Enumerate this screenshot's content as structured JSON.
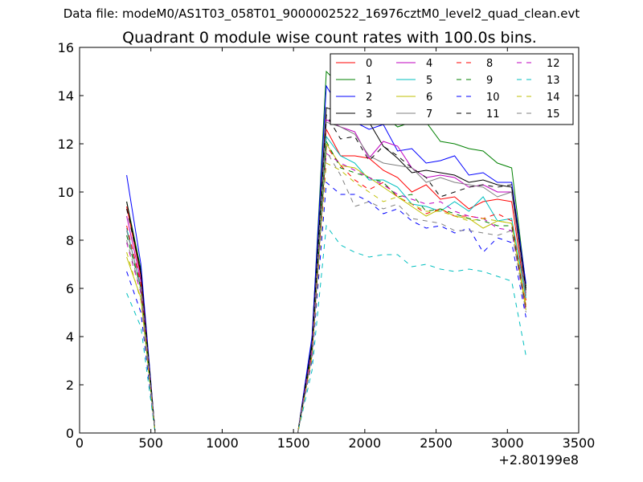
{
  "header": {
    "suptitle": "Data file: modeM0/AS1T03_058T01_9000002522_16976cztM0_level2_quad_clean.evt"
  },
  "chart_data": {
    "type": "line",
    "title": "Quadrant 0 module wise count rates with 100.0s bins.",
    "xlabel": "",
    "ylabel": "",
    "xlim": [
      0,
      3500
    ],
    "ylim": [
      0,
      16
    ],
    "x_offset_label": "+2.80199e8",
    "x_ticks": [
      0,
      500,
      1000,
      1500,
      2000,
      2500,
      3000,
      3500
    ],
    "y_ticks": [
      0,
      2,
      4,
      6,
      8,
      10,
      12,
      14,
      16
    ],
    "grid": false,
    "legend": {
      "placement": "top-right",
      "columns": 4
    },
    "x": [
      330,
      430,
      530,
      630,
      730,
      830,
      930,
      1030,
      1130,
      1230,
      1330,
      1430,
      1530,
      1630,
      1730,
      1830,
      1930,
      2030,
      2130,
      2230,
      2330,
      2430,
      2530,
      2630,
      2730,
      2830,
      2930,
      3030,
      3130
    ],
    "series": [
      {
        "name": "0",
        "color": "#ff0000",
        "dashed": false,
        "values": [
          9.4,
          6.5,
          0,
          0,
          0,
          0,
          0,
          0,
          0,
          0,
          0,
          0,
          0,
          3.6,
          12.6,
          11.5,
          11.5,
          11.4,
          10.9,
          10.6,
          10.0,
          10.3,
          9.7,
          9.8,
          9.3,
          9.6,
          9.7,
          9.6,
          5.5
        ]
      },
      {
        "name": "1",
        "color": "#008000",
        "dashed": false,
        "values": [
          9.6,
          6.8,
          0,
          0,
          0,
          0,
          0,
          0,
          0,
          0,
          0,
          0,
          0,
          3.9,
          15.0,
          14.4,
          14.0,
          13.8,
          13.2,
          12.7,
          12.9,
          12.9,
          12.1,
          12.0,
          11.8,
          11.7,
          11.2,
          11.0,
          6.1
        ]
      },
      {
        "name": "2",
        "color": "#0000ff",
        "dashed": false,
        "values": [
          10.7,
          7.0,
          0,
          0,
          0,
          0,
          0,
          0,
          0,
          0,
          0,
          0,
          0,
          4.0,
          14.4,
          13.4,
          12.9,
          12.6,
          12.8,
          11.7,
          11.8,
          11.2,
          11.3,
          11.5,
          10.7,
          10.8,
          10.4,
          10.4,
          6.2
        ]
      },
      {
        "name": "3",
        "color": "#000000",
        "dashed": false,
        "values": [
          9.6,
          6.6,
          0,
          0,
          0,
          0,
          0,
          0,
          0,
          0,
          0,
          0,
          0,
          3.7,
          13.5,
          13.3,
          13.2,
          12.9,
          11.9,
          11.4,
          10.8,
          10.9,
          10.8,
          10.7,
          10.4,
          10.5,
          10.3,
          10.2,
          6.0
        ]
      },
      {
        "name": "4",
        "color": "#bf00bf",
        "dashed": false,
        "values": [
          9.0,
          6.3,
          0,
          0,
          0,
          0,
          0,
          0,
          0,
          0,
          0,
          0,
          0,
          3.5,
          13.0,
          12.7,
          12.5,
          11.4,
          12.1,
          11.9,
          11.0,
          10.6,
          10.7,
          10.6,
          10.2,
          10.3,
          10.0,
          10.0,
          5.8
        ]
      },
      {
        "name": "5",
        "color": "#00bfbf",
        "dashed": false,
        "values": [
          8.5,
          6.0,
          0,
          0,
          0,
          0,
          0,
          0,
          0,
          0,
          0,
          0,
          0,
          3.3,
          12.3,
          11.5,
          11.2,
          10.5,
          10.5,
          10.2,
          9.5,
          9.4,
          9.2,
          9.6,
          9.2,
          9.8,
          8.8,
          8.9,
          5.6
        ]
      },
      {
        "name": "6",
        "color": "#bfbf00",
        "dashed": false,
        "values": [
          7.3,
          5.6,
          0,
          0,
          0,
          0,
          0,
          0,
          0,
          0,
          0,
          0,
          0,
          3.2,
          12.0,
          11.1,
          11.0,
          10.6,
          10.2,
          9.8,
          9.4,
          9.0,
          9.3,
          9.0,
          8.9,
          8.5,
          8.8,
          8.7,
          5.3
        ]
      },
      {
        "name": "7",
        "color": "#808080",
        "dashed": false,
        "values": [
          8.4,
          6.1,
          0,
          0,
          0,
          0,
          0,
          0,
          0,
          0,
          0,
          0,
          0,
          3.5,
          12.9,
          12.7,
          12.4,
          11.5,
          11.2,
          11.1,
          11.0,
          10.4,
          10.6,
          10.4,
          10.3,
          10.2,
          9.8,
          10.0,
          5.7
        ]
      },
      {
        "name": "8",
        "color": "#ff0000",
        "dashed": true,
        "values": [
          8.6,
          6.2,
          0,
          0,
          0,
          0,
          0,
          0,
          0,
          0,
          0,
          0,
          0,
          3.3,
          11.9,
          11.1,
          10.5,
          10.1,
          10.4,
          9.8,
          9.5,
          9.1,
          9.3,
          9.0,
          9.0,
          8.9,
          9.1,
          8.8,
          5.2
        ]
      },
      {
        "name": "9",
        "color": "#008000",
        "dashed": true,
        "values": [
          8.2,
          6.0,
          0,
          0,
          0,
          0,
          0,
          0,
          0,
          0,
          0,
          0,
          0,
          3.4,
          12.1,
          11.0,
          10.8,
          10.6,
          10.4,
          9.8,
          9.9,
          9.2,
          9.3,
          9.1,
          8.9,
          8.8,
          8.6,
          8.6,
          5.1
        ]
      },
      {
        "name": "10",
        "color": "#0000ff",
        "dashed": true,
        "values": [
          6.7,
          5.0,
          0,
          0,
          0,
          0,
          0,
          0,
          0,
          0,
          0,
          0,
          0,
          3.0,
          10.4,
          9.9,
          9.9,
          9.6,
          9.1,
          9.3,
          8.8,
          8.5,
          8.6,
          8.3,
          8.5,
          7.5,
          8.1,
          7.9,
          4.8
        ]
      },
      {
        "name": "11",
        "color": "#000000",
        "dashed": true,
        "values": [
          9.3,
          6.7,
          0,
          0,
          0,
          0,
          0,
          0,
          0,
          0,
          0,
          0,
          0,
          3.6,
          13.2,
          12.2,
          12.3,
          11.3,
          11.9,
          11.5,
          11.0,
          10.6,
          9.8,
          10.0,
          10.2,
          10.3,
          10.2,
          10.3,
          5.9
        ]
      },
      {
        "name": "12",
        "color": "#bf00bf",
        "dashed": true,
        "values": [
          7.9,
          5.8,
          0,
          0,
          0,
          0,
          0,
          0,
          0,
          0,
          0,
          0,
          0,
          3.4,
          11.6,
          11.2,
          10.9,
          10.6,
          10.3,
          9.9,
          9.7,
          9.5,
          9.6,
          9.2,
          9.0,
          8.9,
          8.5,
          8.4,
          5.0
        ]
      },
      {
        "name": "13",
        "color": "#00bfbf",
        "dashed": true,
        "values": [
          5.8,
          4.4,
          0,
          0,
          0,
          0,
          0,
          0,
          0,
          0,
          0,
          0,
          0,
          2.6,
          8.6,
          7.8,
          7.5,
          7.3,
          7.4,
          7.4,
          6.9,
          7.0,
          6.8,
          6.7,
          6.8,
          6.7,
          6.5,
          6.3,
          3.2
        ]
      },
      {
        "name": "14",
        "color": "#bfbf00",
        "dashed": true,
        "values": [
          7.5,
          5.5,
          0,
          0,
          0,
          0,
          0,
          0,
          0,
          0,
          0,
          0,
          0,
          3.1,
          11.2,
          10.9,
          10.4,
          10.0,
          9.6,
          9.8,
          9.5,
          9.2,
          9.2,
          9.0,
          8.8,
          8.9,
          8.8,
          8.7,
          5.1
        ]
      },
      {
        "name": "15",
        "color": "#808080",
        "dashed": true,
        "values": [
          8.0,
          5.9,
          0,
          0,
          0,
          0,
          0,
          0,
          0,
          0,
          0,
          0,
          0,
          3.2,
          11.7,
          10.7,
          9.4,
          9.6,
          9.3,
          9.5,
          8.9,
          8.8,
          8.7,
          8.4,
          8.4,
          8.3,
          8.2,
          8.4,
          5.0
        ]
      }
    ]
  }
}
